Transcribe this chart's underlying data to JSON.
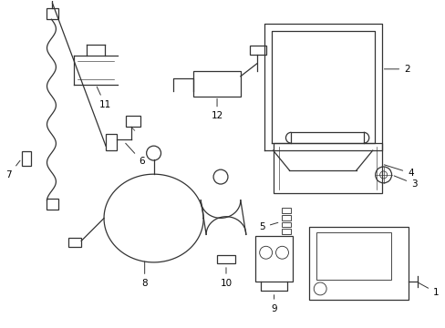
{
  "background_color": "#ffffff",
  "line_color": "#333333",
  "label_color": "#000000",
  "fig_width": 4.89,
  "fig_height": 3.6,
  "dpi": 100
}
